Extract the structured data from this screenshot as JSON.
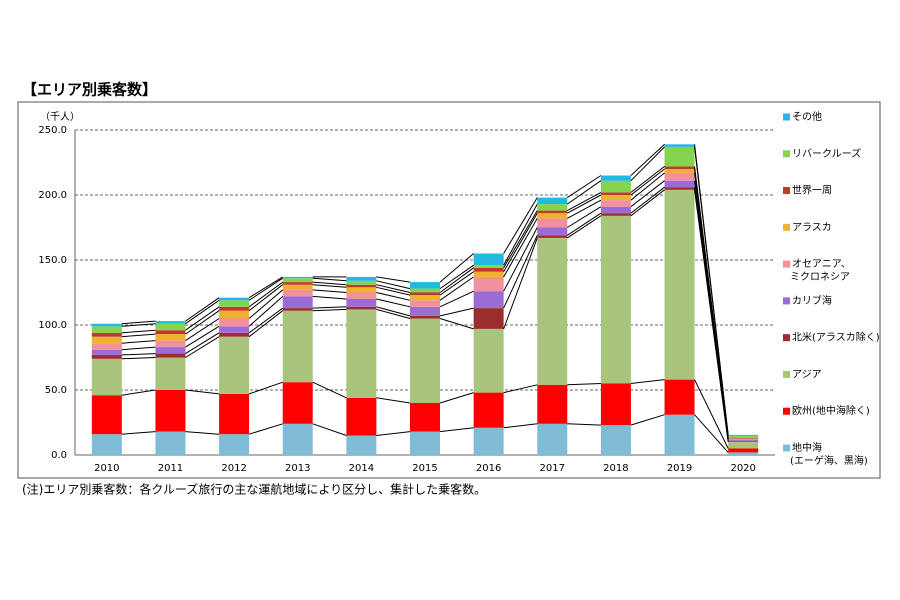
{
  "chart_data": {
    "type": "bar",
    "stacked": true,
    "title": "【エリア別乗客数】",
    "y_unit": "（千人）",
    "note": "(注)エリア別乗客数：各クルーズ旅行の主な運航地域により区分し、集計した乗客数。",
    "categories": [
      "2010",
      "2011",
      "2012",
      "2013",
      "2014",
      "2015",
      "2016",
      "2017",
      "2018",
      "2019",
      "2020"
    ],
    "ylim": [
      0,
      250
    ],
    "yticks": [
      {
        "value": 0,
        "label": "0.0"
      },
      {
        "value": 50,
        "label": "50.0"
      },
      {
        "value": 100,
        "label": "100.0"
      },
      {
        "value": 150,
        "label": "150.0"
      },
      {
        "value": 200,
        "label": "200.0"
      },
      {
        "value": 250,
        "label": "250.0"
      }
    ],
    "grid": true,
    "legend": "right",
    "series": [
      {
        "name": "地中海\n(エーゲ海、黒海)",
        "color": "#7fbcd6",
        "values": [
          16,
          18,
          16,
          24,
          15,
          18,
          21,
          24,
          23,
          31,
          2
        ]
      },
      {
        "name": "欧州(地中海除く)",
        "color": "#ff0000",
        "values": [
          30,
          32,
          31,
          32,
          29,
          22,
          27,
          30,
          32,
          27,
          3
        ]
      },
      {
        "name": "アジア",
        "color": "#a9c47c",
        "values": [
          28,
          25,
          44,
          55,
          68,
          65,
          49,
          113,
          129,
          146,
          5
        ]
      },
      {
        "name": "北米(アラスカ除く)",
        "color": "#9b2d2d",
        "values": [
          3,
          3,
          3,
          2,
          2,
          2,
          16,
          2,
          2,
          2,
          0.5
        ]
      },
      {
        "name": "カリブ海",
        "color": "#9b6bd6",
        "values": [
          4,
          5,
          5,
          9,
          6,
          7,
          13,
          6,
          5,
          5,
          1
        ]
      },
      {
        "name": "オセアニア、\nミクロネシア",
        "color": "#f2909e",
        "values": [
          5,
          5,
          6,
          5,
          5,
          5,
          11,
          7,
          5,
          6,
          1
        ]
      },
      {
        "name": "アラスカ",
        "color": "#f0b030",
        "values": [
          5,
          5,
          6,
          4,
          4,
          4,
          4,
          4,
          4,
          3,
          0
        ]
      },
      {
        "name": "世界一周",
        "color": "#c0392b",
        "values": [
          3,
          3,
          3,
          2,
          2,
          2,
          3,
          2,
          2,
          2,
          0.5
        ]
      },
      {
        "name": "リバークルーズ",
        "color": "#84d44e",
        "values": [
          5,
          5,
          5,
          3,
          3,
          3,
          2,
          5,
          9,
          15,
          2
        ]
      },
      {
        "name": "その他",
        "color": "#22b8e2",
        "values": [
          2,
          2,
          2,
          1,
          3,
          5,
          9,
          5,
          4,
          2,
          0.5
        ]
      }
    ]
  }
}
